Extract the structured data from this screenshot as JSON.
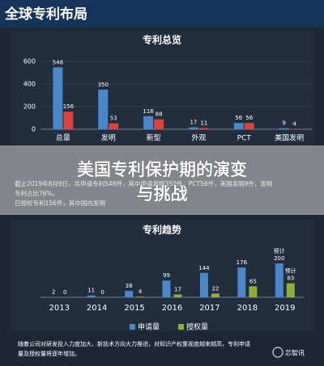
{
  "header": {
    "title": "全球专利布局"
  },
  "chart_data": [
    {
      "type": "bar",
      "title": "专利总览",
      "categories": [
        "总量",
        "发明",
        "新型",
        "外观",
        "PCT",
        "美国发明"
      ],
      "series": [
        {
          "color": "#4a86c8",
          "values": [
            548,
            350,
            116,
            17,
            56,
            9
          ]
        },
        {
          "color": "#d8433b",
          "values": [
            156,
            53,
            88,
            11,
            56,
            4
          ]
        }
      ],
      "ylim": [
        0,
        600
      ],
      "yticks": [
        0,
        200,
        400,
        600
      ],
      "grid": true
    },
    {
      "type": "bar",
      "title": "专利趋势",
      "categories": [
        "2013",
        "2014",
        "2015",
        "2016",
        "2017",
        "2018",
        "2019"
      ],
      "series": [
        {
          "name": "申请量",
          "color": "#4a86c8",
          "values": [
            2,
            11,
            38,
            99,
            144,
            176,
            200
          ]
        },
        {
          "name": "授权量",
          "color": "#8fae3c",
          "values": [
            0,
            0,
            4,
            17,
            22,
            65,
            83
          ]
        }
      ],
      "ylim": [
        0,
        200
      ],
      "annotations": [
        "预计",
        "预计"
      ],
      "legend": "bottom"
    }
  ],
  "banner": {
    "lines": [
      "美国专利保护期的演变",
      "与挑战"
    ]
  },
  "notes": [
    "截止2019年8月9日，共申请专利548件，其中申请发明350件，PCT56件，美国发明9件，发明",
    "专利占比76%。",
    "已授权专利156件，其中国内发明"
  ],
  "footer": {
    "lines": [
      "随着公司对研发投入力度加大、新技术方向大力推进，对知识产权重视度越来越高，专利申请",
      "量及授权量将逐年增加。"
    ],
    "logo": "芯智讯"
  }
}
